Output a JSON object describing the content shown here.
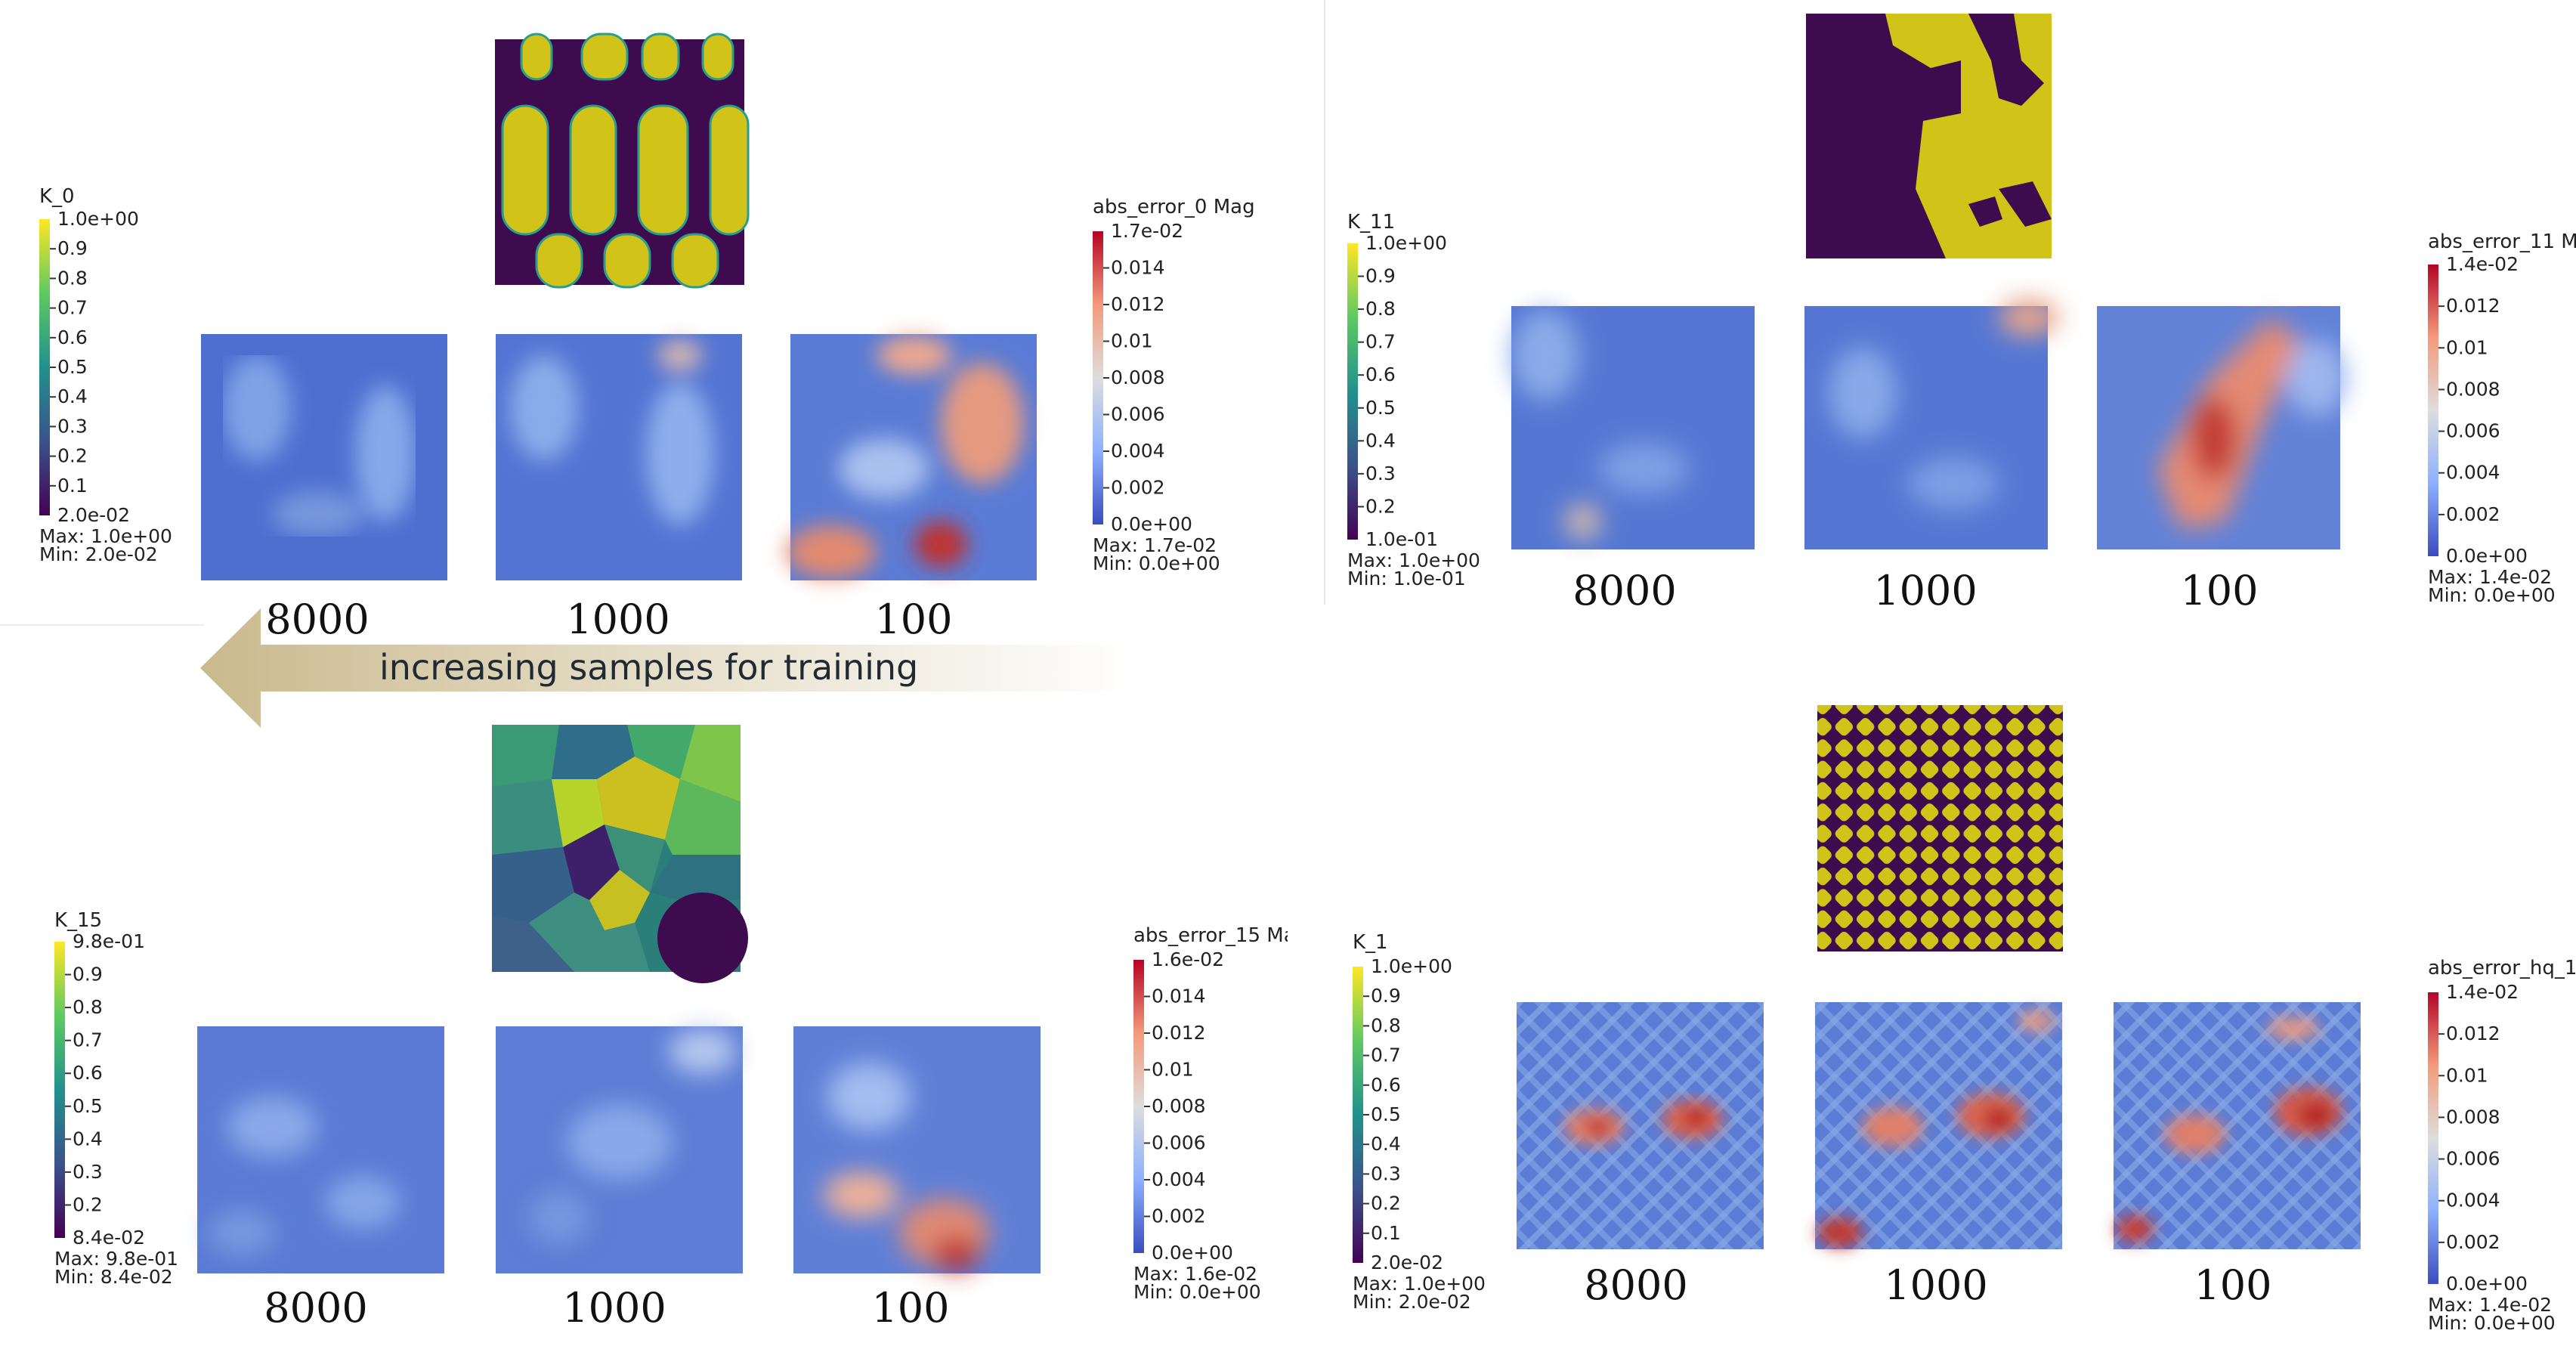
{
  "arrow": {
    "label": "increasing samples for training"
  },
  "panels": [
    {
      "id": "tl",
      "input_pattern": "rounded-pills",
      "colorbar_left": {
        "title": "K_0",
        "max_label": "1.0e+00",
        "min_label": "2.0e-02",
        "ticks": [
          "0.9",
          "0.8",
          "0.7",
          "0.6",
          "0.5",
          "0.4",
          "0.3",
          "0.2",
          "0.1"
        ],
        "max_text": "Max: 1.0e+00",
        "min_text": "Min: 2.0e-02"
      },
      "colorbar_right": {
        "title": "abs_error_0 Mag",
        "max_label": "1.7e-02",
        "min_label": "0.0e+00",
        "ticks": [
          "0.014",
          "0.012",
          "0.01",
          "0.008",
          "0.006",
          "0.004",
          "0.002"
        ],
        "max_text": "Max: 1.7e-02",
        "min_text": "Min: 0.0e+00"
      },
      "captions": [
        "8000",
        "1000",
        "100"
      ]
    },
    {
      "id": "tr",
      "input_pattern": "blob-regions",
      "colorbar_left": {
        "title": "K_11",
        "max_label": "1.0e+00",
        "min_label": "1.0e-01",
        "ticks": [
          "0.9",
          "0.8",
          "0.7",
          "0.6",
          "0.5",
          "0.4",
          "0.3",
          "0.2"
        ],
        "max_text": "Max: 1.0e+00",
        "min_text": "Min: 1.0e-01"
      },
      "colorbar_right": {
        "title": "abs_error_11 M",
        "max_label": "1.4e-02",
        "min_label": "0.0e+00",
        "ticks": [
          "0.012",
          "0.01",
          "0.008",
          "0.006",
          "0.004",
          "0.002"
        ],
        "max_text": "Max: 1.4e-02",
        "min_text": "Min: 0.0e+00"
      },
      "captions": [
        "8000",
        "1000",
        "100"
      ]
    },
    {
      "id": "bl",
      "input_pattern": "voronoi-grains",
      "colorbar_left": {
        "title": "K_15",
        "max_label": "9.8e-01",
        "min_label": "8.4e-02",
        "ticks": [
          "0.9",
          "0.8",
          "0.7",
          "0.6",
          "0.5",
          "0.4",
          "0.3",
          "0.2"
        ],
        "max_text": "Max: 9.8e-01",
        "min_text": "Min: 8.4e-02"
      },
      "colorbar_right": {
        "title": "abs_error_15 Ma",
        "max_label": "1.6e-02",
        "min_label": "0.0e+00",
        "ticks": [
          "0.014",
          "0.012",
          "0.01",
          "0.008",
          "0.006",
          "0.004",
          "0.002"
        ],
        "max_text": "Max: 1.6e-02",
        "min_text": "Min: 0.0e+00"
      },
      "captions": [
        "8000",
        "1000",
        "100"
      ]
    },
    {
      "id": "br",
      "input_pattern": "checker-x",
      "colorbar_left": {
        "title": "K_1",
        "max_label": "1.0e+00",
        "min_label": "2.0e-02",
        "ticks": [
          "0.9",
          "0.8",
          "0.7",
          "0.6",
          "0.5",
          "0.4",
          "0.3",
          "0.2",
          "0.1"
        ],
        "max_text": "Max: 1.0e+00",
        "min_text": "Min: 2.0e-02"
      },
      "colorbar_right": {
        "title": "abs_error_hq_1",
        "max_label": "1.4e-02",
        "min_label": "0.0e+00",
        "ticks": [
          "0.012",
          "0.01",
          "0.008",
          "0.006",
          "0.004",
          "0.002"
        ],
        "max_text": "Max: 1.4e-02",
        "min_text": "Min: 0.0e+00"
      },
      "captions": [
        "8000",
        "1000",
        "100"
      ]
    }
  ]
}
